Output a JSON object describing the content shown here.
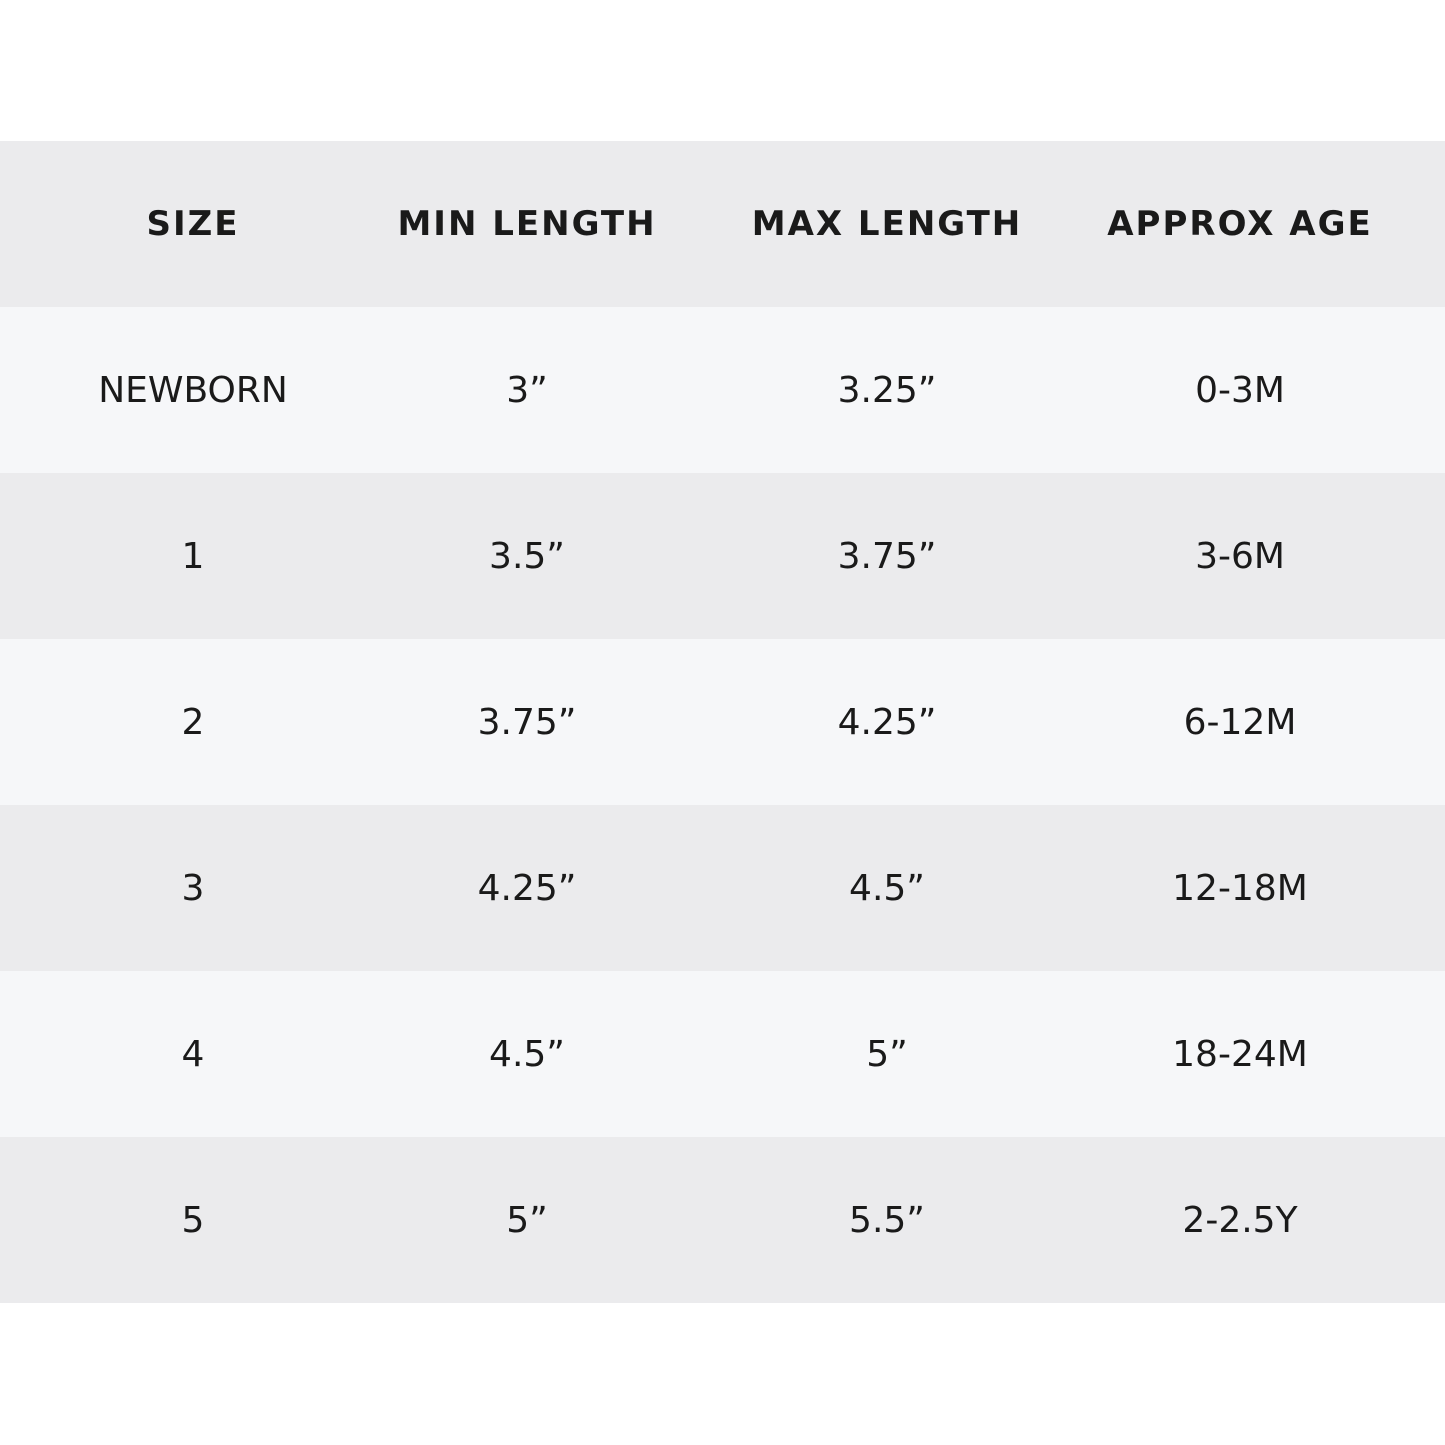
{
  "table": {
    "header": [
      "SIZE",
      "MIN LENGTH",
      "MAX LENGTH",
      "APPROX AGE"
    ],
    "rows": [
      [
        "NEWBORN",
        "3”",
        "3.25”",
        "0-3M"
      ],
      [
        "1",
        "3.5”",
        "3.75”",
        "3-6M"
      ],
      [
        "2",
        "3.75”",
        "4.25”",
        "6-12M"
      ],
      [
        "3",
        "4.25”",
        "4.5”",
        "12-18M"
      ],
      [
        "4",
        "4.5”",
        "5”",
        "18-24M"
      ],
      [
        "5",
        "5”",
        "5.5”",
        "2-2.5Y"
      ]
    ]
  }
}
